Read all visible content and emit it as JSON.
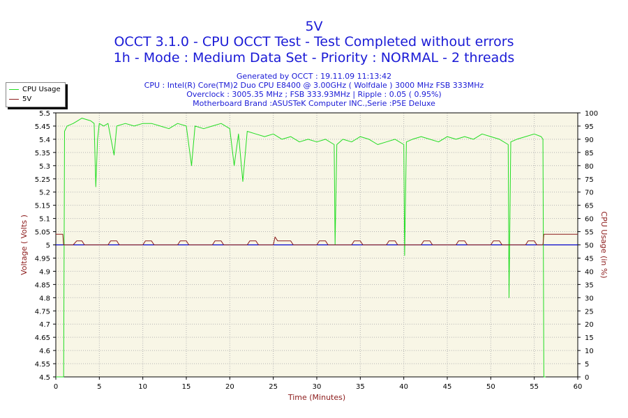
{
  "header": {
    "title": "5V",
    "line1": "OCCT 3.1.0 - CPU OCCT Test - Test Completed without errors",
    "line2": "1h - Mode : Medium Data Set - Priority : NORMAL - 2 threads",
    "info": [
      "Generated by OCCT : 19.11.09 11:13:42",
      "CPU : Intel(R) Core(TM)2 Duo CPU E8400 @ 3.00GHz ( Wolfdale ) 3000 MHz FSB 333MHz",
      "Overclock : 3005.35 MHz ; FSB 333.93MHz | Ripple : 0.05 ( 0.95%)",
      "Motherboard Brand :ASUSTeK Computer INC.,Serie :P5E Deluxe"
    ]
  },
  "colors": {
    "title": "#1a1ad6",
    "axis_label": "#8b1a1a",
    "plot_bg": "#f8f6e6",
    "grid": "#b4b4b4",
    "cpu": "#22dd22",
    "voltage": "#8b1a1a",
    "ref_line": "#0000cc"
  },
  "chart_data": {
    "type": "line",
    "title": "5V",
    "xlabel": "Time (Minutes)",
    "ylabel_left": "Voltage ( Volts )",
    "ylabel_right": "CPU Usage (in %)",
    "xlim": [
      0,
      60
    ],
    "ylim_left": [
      4.5,
      5.5
    ],
    "ylim_right": [
      0,
      100
    ],
    "grid": true,
    "legend": "top-left outside",
    "x_ticks": [
      "0",
      "5",
      "10",
      "15",
      "20",
      "25",
      "30",
      "35",
      "40",
      "45",
      "50",
      "55",
      "60"
    ],
    "y_ticks_left": [
      "5.5",
      "5.45",
      "5.4",
      "5.35",
      "5.3",
      "5.25",
      "5.2",
      "5.15",
      "5.1",
      "5.05",
      "5",
      "4.95",
      "4.9",
      "4.85",
      "4.8",
      "4.75",
      "4.7",
      "4.65",
      "4.6",
      "4.55",
      "4.5"
    ],
    "y_ticks_right": [
      "100",
      "95",
      "90",
      "85",
      "80",
      "75",
      "70",
      "65",
      "60",
      "55",
      "50",
      "45",
      "40",
      "35",
      "30",
      "25",
      "20",
      "15",
      "10",
      "5",
      "0"
    ],
    "reference_line": 5.0,
    "series": [
      {
        "name": "CPU Usage",
        "axis": "right",
        "x": [
          0,
          0.9,
          1.0,
          1.3,
          2,
          2.5,
          3,
          4,
          4.4,
          4.6,
          4.8,
          5.0,
          5.5,
          6,
          6.7,
          7,
          8,
          9,
          10,
          11,
          12,
          13,
          14,
          15,
          15.6,
          16,
          17,
          18,
          19,
          20,
          20.5,
          21,
          21.5,
          22,
          23,
          24,
          25,
          26,
          27,
          28,
          29,
          30,
          31,
          32,
          32.1,
          32.3,
          33,
          34,
          35,
          36,
          37,
          38,
          39,
          40,
          40.1,
          40.3,
          41,
          42,
          43,
          44,
          45,
          46,
          47,
          48,
          49,
          50,
          51,
          52,
          52.1,
          52.3,
          53,
          54,
          55,
          55.8,
          56.0,
          56.1,
          56.3
        ],
        "values": [
          0,
          0,
          93,
          95,
          96,
          97,
          98,
          97,
          96,
          72,
          90,
          96,
          95,
          96,
          84,
          95,
          96,
          95,
          96,
          96,
          95,
          94,
          96,
          95,
          80,
          95,
          94,
          95,
          96,
          94,
          80,
          92,
          74,
          93,
          92,
          91,
          92,
          90,
          91,
          89,
          90,
          89,
          90,
          88,
          50,
          88,
          90,
          89,
          91,
          90,
          88,
          89,
          90,
          88,
          46,
          89,
          90,
          91,
          90,
          89,
          91,
          90,
          91,
          90,
          92,
          91,
          90,
          88,
          30,
          89,
          90,
          91,
          92,
          91,
          90,
          0,
          0
        ]
      },
      {
        "name": "5V",
        "axis": "left",
        "x": [
          0,
          0.8,
          0.9,
          1.5,
          2,
          2.4,
          3,
          3.3,
          3.6,
          4.7,
          5,
          6,
          6.3,
          7,
          7.3,
          7.6,
          8.7,
          9,
          10,
          10.3,
          11,
          11.3,
          11.6,
          12.7,
          13,
          14,
          14.3,
          15,
          15.3,
          15.6,
          16.7,
          17,
          18,
          18.3,
          19,
          19.3,
          19.6,
          20.7,
          21,
          22,
          22.3,
          23,
          23.3,
          23.6,
          24.7,
          25,
          25.2,
          25.5,
          26,
          26.3,
          27,
          27.3,
          27.6,
          28.7,
          29,
          30,
          30.3,
          31,
          31.3,
          31.6,
          32.7,
          33,
          34,
          34.3,
          35,
          35.3,
          35.6,
          36.7,
          37,
          38,
          38.3,
          39,
          39.3,
          39.6,
          40.7,
          41,
          42,
          42.3,
          43,
          43.3,
          43.6,
          44.7,
          45,
          46,
          46.3,
          47,
          47.3,
          47.6,
          48.7,
          49,
          50,
          50.3,
          51,
          51.3,
          51.6,
          52.7,
          53,
          54,
          54.3,
          55,
          55.3,
          55.6,
          56.0,
          56.1,
          60
        ],
        "values": [
          5.04,
          5.04,
          5.0,
          5.0,
          5.0,
          5.015,
          5.015,
          5.0,
          5.0,
          5.0,
          5.0,
          5.0,
          5.015,
          5.015,
          5.0,
          5.0,
          5.0,
          5.0,
          5.0,
          5.015,
          5.015,
          5.0,
          5.0,
          5.0,
          5.0,
          5.0,
          5.015,
          5.015,
          5.0,
          5.0,
          5.0,
          5.0,
          5.0,
          5.015,
          5.015,
          5.0,
          5.0,
          5.0,
          5.0,
          5.0,
          5.015,
          5.015,
          5.0,
          5.0,
          5.0,
          5.0,
          5.03,
          5.015,
          5.015,
          5.015,
          5.015,
          5.0,
          5.0,
          5.0,
          5.0,
          5.0,
          5.015,
          5.015,
          5.0,
          5.0,
          5.0,
          5.0,
          5.0,
          5.015,
          5.015,
          5.0,
          5.0,
          5.0,
          5.0,
          5.0,
          5.015,
          5.015,
          5.0,
          5.0,
          5.0,
          5.0,
          5.0,
          5.015,
          5.015,
          5.0,
          5.0,
          5.0,
          5.0,
          5.0,
          5.015,
          5.015,
          5.0,
          5.0,
          5.0,
          5.0,
          5.0,
          5.015,
          5.015,
          5.0,
          5.0,
          5.0,
          5.0,
          5.0,
          5.015,
          5.015,
          5.0,
          5.0,
          5.0,
          5.04,
          5.04
        ]
      }
    ]
  }
}
